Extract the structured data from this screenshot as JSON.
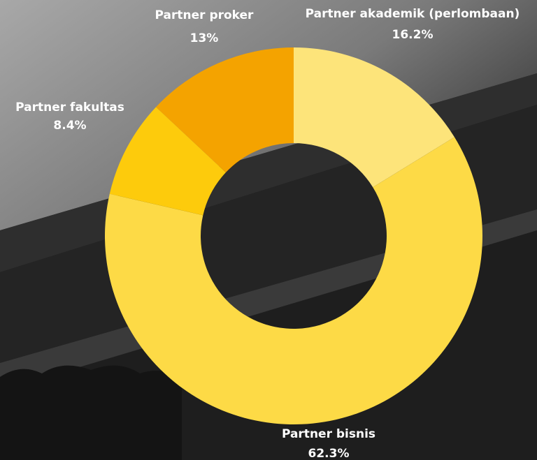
{
  "chart_data": {
    "type": "donut",
    "categories": [
      "Partner akademik (perlombaan)",
      "Partner bisnis",
      "Partner fakultas",
      "Partner proker"
    ],
    "values": [
      16.2,
      62.3,
      8.4,
      13
    ],
    "value_labels": [
      "16.2%",
      "62.3%",
      "8.4%",
      "13%"
    ],
    "colors": [
      "#fde47a",
      "#fdda46",
      "#fdcb0c",
      "#f4a300"
    ]
  }
}
